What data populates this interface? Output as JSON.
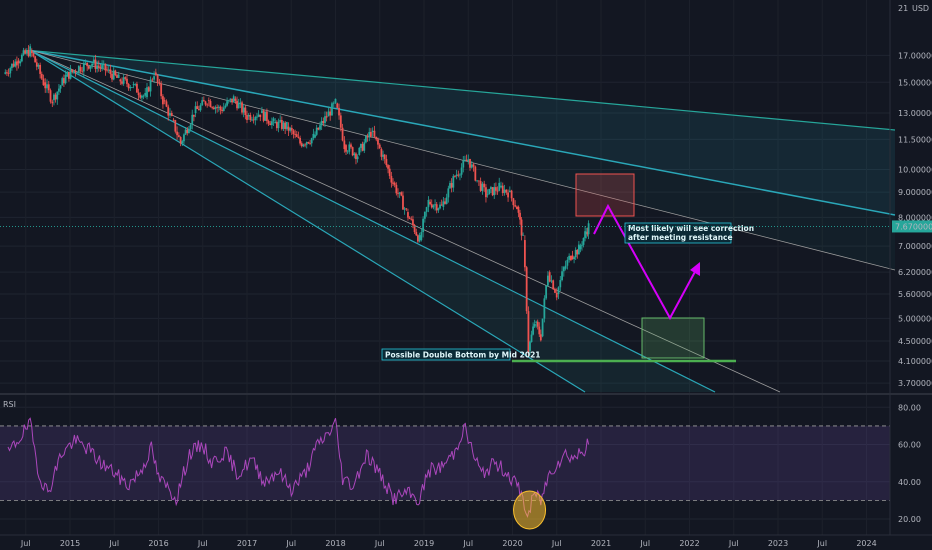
{
  "chart_data": [
    {
      "type": "candlestick",
      "currency_label": "USD",
      "y_ticks": [
        21.0,
        17.0,
        15.0,
        13.0,
        11.5,
        10.0,
        9.0,
        8.0,
        7.0,
        6.2,
        5.6,
        5.0,
        4.5,
        4.1,
        3.7
      ],
      "y_tick_labels": [
        "21",
        "17.000000",
        "15.000000",
        "13.000000",
        "11.500000",
        "10.000000",
        "9.000000",
        "8.000000",
        "7.000000",
        "6.200000",
        "5.600000",
        "5.000000",
        "4.500000",
        "4.100000",
        "3.700000"
      ],
      "last_price": 7.67,
      "last_price_label": "7.670000",
      "x_tick_labels": [
        "Jul",
        "2015",
        "Jul",
        "2016",
        "Jul",
        "2017",
        "Jul",
        "2018",
        "Jul",
        "2019",
        "Jul",
        "2020",
        "Jul",
        "2021",
        "Jul",
        "2022",
        "Jul",
        "2023",
        "Jul",
        "2024"
      ],
      "price_path": [
        [
          2014.25,
          15.6
        ],
        [
          2014.4,
          16.6
        ],
        [
          2014.55,
          17.4
        ],
        [
          2014.7,
          15.0
        ],
        [
          2014.8,
          13.8
        ],
        [
          2014.95,
          15.4
        ],
        [
          2015.1,
          16.1
        ],
        [
          2015.25,
          16.4
        ],
        [
          2015.4,
          15.9
        ],
        [
          2015.55,
          15.2
        ],
        [
          2015.7,
          14.8
        ],
        [
          2015.85,
          14.0
        ],
        [
          2015.95,
          15.7
        ],
        [
          2016.05,
          13.8
        ],
        [
          2016.15,
          12.6
        ],
        [
          2016.25,
          11.3
        ],
        [
          2016.4,
          13.0
        ],
        [
          2016.55,
          13.8
        ],
        [
          2016.7,
          13.2
        ],
        [
          2016.85,
          13.9
        ],
        [
          2017.0,
          12.8
        ],
        [
          2017.15,
          13.0
        ],
        [
          2017.3,
          12.4
        ],
        [
          2017.45,
          12.2
        ],
        [
          2017.6,
          11.3
        ],
        [
          2017.75,
          11.6
        ],
        [
          2017.9,
          12.8
        ],
        [
          2018.0,
          13.6
        ],
        [
          2018.1,
          11.2
        ],
        [
          2018.25,
          10.7
        ],
        [
          2018.4,
          11.9
        ],
        [
          2018.5,
          11.0
        ],
        [
          2018.65,
          9.4
        ],
        [
          2018.8,
          8.2
        ],
        [
          2018.95,
          7.2
        ],
        [
          2019.05,
          8.6
        ],
        [
          2019.2,
          8.4
        ],
        [
          2019.35,
          9.7
        ],
        [
          2019.5,
          10.5
        ],
        [
          2019.6,
          9.5
        ],
        [
          2019.7,
          8.9
        ],
        [
          2019.85,
          9.2
        ],
        [
          2019.95,
          9.0
        ],
        [
          2020.05,
          8.4
        ],
        [
          2020.12,
          7.2
        ],
        [
          2020.18,
          4.3
        ],
        [
          2020.25,
          4.9
        ],
        [
          2020.32,
          4.6
        ],
        [
          2020.4,
          6.2
        ],
        [
          2020.5,
          5.6
        ],
        [
          2020.58,
          6.3
        ],
        [
          2020.66,
          6.7
        ],
        [
          2020.75,
          6.9
        ],
        [
          2020.82,
          7.4
        ],
        [
          2020.86,
          7.67
        ]
      ],
      "annotations": [
        "Most likely will see correction after meeting resistance",
        "Possible Double Bottom by Mid 2021"
      ]
    },
    {
      "type": "line",
      "indicator": "RSI",
      "y_ticks": [
        80.0,
        60.0,
        40.0,
        20.0
      ],
      "y_tick_labels": [
        "80.00",
        "60.00",
        "40.00",
        "20.00"
      ],
      "upper_band": 70,
      "lower_band": 30,
      "values": [
        [
          2014.3,
          55
        ],
        [
          2014.45,
          65
        ],
        [
          2014.55,
          71
        ],
        [
          2014.65,
          44
        ],
        [
          2014.75,
          34
        ],
        [
          2014.9,
          55
        ],
        [
          2015.05,
          62
        ],
        [
          2015.2,
          58
        ],
        [
          2015.35,
          50
        ],
        [
          2015.5,
          45
        ],
        [
          2015.65,
          38
        ],
        [
          2015.8,
          46
        ],
        [
          2015.92,
          58
        ],
        [
          2016.0,
          42
        ],
        [
          2016.1,
          37
        ],
        [
          2016.2,
          31
        ],
        [
          2016.35,
          55
        ],
        [
          2016.5,
          60
        ],
        [
          2016.6,
          50
        ],
        [
          2016.75,
          56
        ],
        [
          2016.9,
          44
        ],
        [
          2017.05,
          52
        ],
        [
          2017.2,
          40
        ],
        [
          2017.35,
          46
        ],
        [
          2017.5,
          36
        ],
        [
          2017.65,
          44
        ],
        [
          2017.8,
          60
        ],
        [
          2017.92,
          66
        ],
        [
          2018.0,
          72
        ],
        [
          2018.08,
          42
        ],
        [
          2018.2,
          38
        ],
        [
          2018.35,
          55
        ],
        [
          2018.45,
          48
        ],
        [
          2018.55,
          40
        ],
        [
          2018.65,
          31
        ],
        [
          2018.8,
          34
        ],
        [
          2018.95,
          30
        ],
        [
          2019.05,
          46
        ],
        [
          2019.2,
          48
        ],
        [
          2019.35,
          56
        ],
        [
          2019.45,
          70
        ],
        [
          2019.55,
          56
        ],
        [
          2019.65,
          44
        ],
        [
          2019.8,
          50
        ],
        [
          2019.92,
          46
        ],
        [
          2020.02,
          40
        ],
        [
          2020.1,
          34
        ],
        [
          2020.17,
          21
        ],
        [
          2020.25,
          34
        ],
        [
          2020.32,
          30
        ],
        [
          2020.42,
          45
        ],
        [
          2020.5,
          50
        ],
        [
          2020.6,
          55
        ],
        [
          2020.7,
          53
        ],
        [
          2020.8,
          57
        ],
        [
          2020.86,
          60
        ]
      ]
    }
  ]
}
